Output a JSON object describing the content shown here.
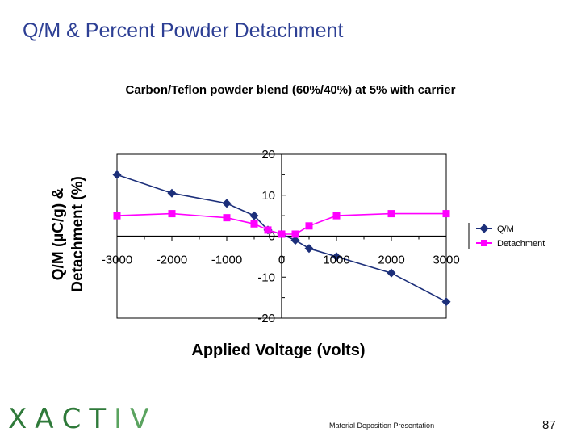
{
  "slide": {
    "title": "Q/M & Percent Powder Detachment",
    "footer": "Material Deposition Presentation",
    "page_number": "87"
  },
  "logo": {
    "letters": [
      "X",
      "A",
      "C",
      "T",
      "I",
      "V"
    ],
    "colors": [
      "#2f7a3a",
      "#2f7a3a",
      "#2f7a3a",
      "#2f7a3a",
      "#5aa35f",
      "#5aa35f"
    ]
  },
  "colors": {
    "qm": "#1c2f7a",
    "detachment": "#ff00ff",
    "axis": "#000000",
    "title": "#2d3f94"
  },
  "chart_data": {
    "type": "line",
    "title": "Carbon/Teflon powder blend (60%/40%) at 5% with carrier",
    "xlabel": "Applied Voltage (volts)",
    "ylabel_line1": "Q/M (µC/g) &",
    "ylabel_line2": "Detachment (%)",
    "xlim": [
      -3000,
      3000
    ],
    "ylim": [
      -20,
      20
    ],
    "x_ticks": [
      -3000,
      -2000,
      -1000,
      0,
      1000,
      2000,
      3000
    ],
    "x_tick_labels": [
      "-3000",
      "-2000",
      "-1000",
      "0",
      "1000",
      "2000",
      "3000"
    ],
    "y_ticks": [
      -20,
      -10,
      0,
      10,
      20
    ],
    "y_tick_labels": [
      "-20",
      "-10",
      "0",
      "10",
      "20"
    ],
    "legend_position": "right",
    "series": [
      {
        "name": "Q/M",
        "marker": "diamond",
        "x": [
          -3000,
          -2000,
          -1000,
          -500,
          -250,
          0,
          250,
          500,
          1000,
          2000,
          3000
        ],
        "y": [
          15,
          10.5,
          8,
          5,
          1.5,
          0.5,
          -1,
          -3,
          -5,
          -9,
          -16
        ]
      },
      {
        "name": "Detachment",
        "marker": "square",
        "x": [
          -3000,
          -2000,
          -1000,
          -500,
          -250,
          0,
          250,
          500,
          1000,
          2000,
          3000
        ],
        "y": [
          5,
          5.5,
          4.5,
          3,
          1.5,
          0.5,
          0.5,
          2.5,
          5,
          5.5,
          5.5
        ]
      }
    ]
  }
}
